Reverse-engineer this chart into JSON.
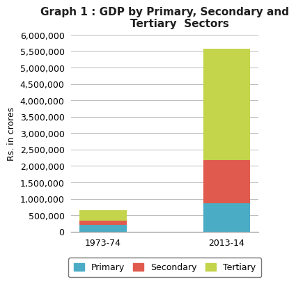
{
  "title_line1": "Graph 1 : GDP by Primary, Secondary and",
  "title_line2": "        Tertiary  Sectors",
  "ylabel": "Rs. in crores",
  "categories": [
    "1973-74",
    "2013-14"
  ],
  "primary": [
    200000,
    860000
  ],
  "secondary": [
    130000,
    1310000
  ],
  "tertiary": [
    320000,
    3410000
  ],
  "colors": {
    "primary": "#4bacc6",
    "secondary": "#e05a4e",
    "tertiary": "#c4d44b"
  },
  "ylim": [
    0,
    6000000
  ],
  "yticks": [
    0,
    500000,
    1000000,
    1500000,
    2000000,
    2500000,
    3000000,
    3500000,
    4000000,
    4500000,
    5000000,
    5500000,
    6000000
  ],
  "bar_width": 0.38,
  "background_color": "#ffffff",
  "title_fontsize": 11,
  "title_color": "#1f1f1f",
  "axis_label_fontsize": 9,
  "tick_fontsize": 9,
  "legend_labels": [
    "Primary",
    "Secondary",
    "Tertiary"
  ]
}
